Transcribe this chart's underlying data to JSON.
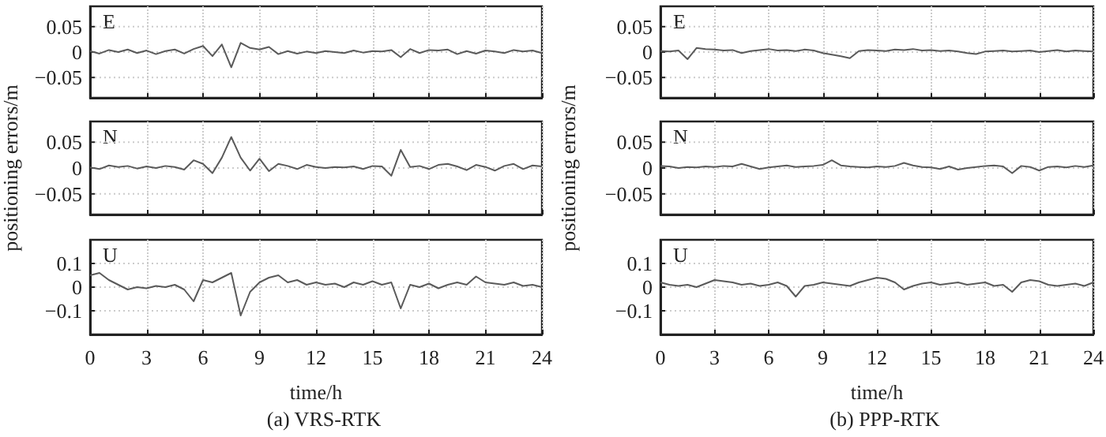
{
  "chart_data": [
    {
      "type": "line",
      "annotations": [
        "E"
      ],
      "x": [
        0,
        0.5,
        1,
        1.5,
        2,
        2.5,
        3,
        3.5,
        4,
        4.5,
        5,
        5.5,
        6,
        6.5,
        7,
        7.5,
        8,
        8.5,
        9,
        9.5,
        10,
        10.5,
        11,
        11.5,
        12,
        12.5,
        13,
        13.5,
        14,
        14.5,
        15,
        15.5,
        16,
        16.5,
        17,
        17.5,
        18,
        18.5,
        19,
        19.5,
        20,
        20.5,
        21,
        21.5,
        22,
        22.5,
        23,
        23.5,
        24
      ],
      "color": "#5a5a5a",
      "values": [
        0.002,
        -0.003,
        0.004,
        0,
        0.005,
        -0.002,
        0.003,
        -0.004,
        0.002,
        0.005,
        -0.003,
        0.006,
        0.012,
        -0.008,
        0.015,
        -0.03,
        0.018,
        0.008,
        0.005,
        0.01,
        -0.004,
        0.002,
        -0.003,
        0.001,
        -0.002,
        0.002,
        0,
        -0.002,
        0.003,
        -0.001,
        0.002,
        0.001,
        0.004,
        -0.01,
        0.006,
        -0.002,
        0.004,
        0.003,
        0.005,
        -0.004,
        0.002,
        -0.003,
        0.003,
        0.001,
        -0.002,
        0.004,
        0.001,
        0.003,
        -0.002
      ],
      "xlim": [
        0,
        24
      ],
      "xticks": [
        0,
        3,
        6,
        9,
        12,
        15,
        18,
        21,
        24
      ],
      "ylim": [
        -0.09,
        0.09
      ],
      "yticks": [
        -0.05,
        0,
        0.05
      ],
      "grid": true,
      "tick_labels": "y",
      "marker": "none"
    },
    {
      "type": "line",
      "annotations": [
        "N"
      ],
      "ylabel": "positioning errors/m",
      "x": [
        0,
        0.5,
        1,
        1.5,
        2,
        2.5,
        3,
        3.5,
        4,
        4.5,
        5,
        5.5,
        6,
        6.5,
        7,
        7.5,
        8,
        8.5,
        9,
        9.5,
        10,
        10.5,
        11,
        11.5,
        12,
        12.5,
        13,
        13.5,
        14,
        14.5,
        15,
        15.5,
        16,
        16.5,
        17,
        17.5,
        18,
        18.5,
        19,
        19.5,
        20,
        20.5,
        21,
        21.5,
        22,
        22.5,
        23,
        23.5,
        24
      ],
      "color": "#5a5a5a",
      "values": [
        0.001,
        -0.002,
        0.005,
        0.002,
        0.004,
        -0.001,
        0.003,
        0,
        0.004,
        0.002,
        -0.003,
        0.015,
        0.008,
        -0.01,
        0.02,
        0.06,
        0.02,
        -0.005,
        0.018,
        -0.006,
        0.008,
        0.004,
        -0.002,
        0.006,
        0.002,
        0,
        0.002,
        0.001,
        0.003,
        -0.002,
        0.004,
        0.003,
        -0.015,
        0.035,
        0.002,
        0.004,
        -0.002,
        0.006,
        0.008,
        0.003,
        -0.004,
        0.006,
        0.002,
        -0.005,
        0.004,
        0.008,
        -0.002,
        0.005,
        0.003
      ],
      "xlim": [
        0,
        24
      ],
      "xticks": [
        0,
        3,
        6,
        9,
        12,
        15,
        18,
        21,
        24
      ],
      "ylim": [
        -0.09,
        0.09
      ],
      "yticks": [
        -0.05,
        0,
        0.05
      ],
      "grid": true,
      "tick_labels": "y",
      "marker": "none"
    },
    {
      "type": "line",
      "annotations": [
        "U"
      ],
      "title": "(a) VRS-RTK",
      "xlabel": "time/h",
      "x": [
        0,
        0.5,
        1,
        1.5,
        2,
        2.5,
        3,
        3.5,
        4,
        4.5,
        5,
        5.5,
        6,
        6.5,
        7,
        7.5,
        8,
        8.5,
        9,
        9.5,
        10,
        10.5,
        11,
        11.5,
        12,
        12.5,
        13,
        13.5,
        14,
        14.5,
        15,
        15.5,
        16,
        16.5,
        17,
        17.5,
        18,
        18.5,
        19,
        19.5,
        20,
        20.5,
        21,
        21.5,
        22,
        22.5,
        23,
        23.5,
        24
      ],
      "color": "#5a5a5a",
      "values": [
        0.05,
        0.06,
        0.03,
        0.01,
        -0.01,
        0,
        -0.005,
        0.005,
        0,
        0.01,
        -0.01,
        -0.06,
        0.03,
        0.02,
        0.04,
        0.06,
        -0.12,
        -0.02,
        0.02,
        0.04,
        0.05,
        0.02,
        0.03,
        0.01,
        0.02,
        0.01,
        0.015,
        0,
        0.02,
        0.01,
        0.025,
        0.01,
        0.02,
        -0.09,
        0.01,
        0,
        0.015,
        -0.005,
        0.01,
        0.02,
        0.01,
        0.045,
        0.02,
        0.015,
        0.01,
        0.02,
        0.005,
        0.01,
        0
      ],
      "xlim": [
        0,
        24
      ],
      "xticks": [
        0,
        3,
        6,
        9,
        12,
        15,
        18,
        21,
        24
      ],
      "ylim": [
        -0.2,
        0.2
      ],
      "yticks": [
        -0.1,
        0,
        0.1
      ],
      "grid": true,
      "marker": "none"
    },
    {
      "type": "line",
      "annotations": [
        "E"
      ],
      "x": [
        0,
        0.5,
        1,
        1.5,
        2,
        2.5,
        3,
        3.5,
        4,
        4.5,
        5,
        5.5,
        6,
        6.5,
        7,
        7.5,
        8,
        8.5,
        9,
        9.5,
        10,
        10.5,
        11,
        11.5,
        12,
        12.5,
        13,
        13.5,
        14,
        14.5,
        15,
        15.5,
        16,
        16.5,
        17,
        17.5,
        18,
        18.5,
        19,
        19.5,
        20,
        20.5,
        21,
        21.5,
        22,
        22.5,
        23,
        23.5,
        24
      ],
      "color": "#5a5a5a",
      "values": [
        0.002,
        0.001,
        0.003,
        -0.014,
        0.008,
        0.006,
        0.005,
        0.003,
        0.004,
        -0.002,
        0.002,
        0.004,
        0.006,
        0.003,
        0.004,
        0.002,
        0.005,
        0.003,
        -0.002,
        -0.005,
        -0.008,
        -0.012,
        0.002,
        0.004,
        0.003,
        0.002,
        0.005,
        0.004,
        0.006,
        0.003,
        0.004,
        0.002,
        0.003,
        0.001,
        -0.002,
        -0.004,
        0.001,
        0.002,
        0.003,
        0.001,
        0.002,
        0.003,
        0,
        0.002,
        0.004,
        0.001,
        0.003,
        0.002,
        0.001
      ],
      "xlim": [
        0,
        24
      ],
      "xticks": [
        0,
        3,
        6,
        9,
        12,
        15,
        18,
        21,
        24
      ],
      "ylim": [
        -0.09,
        0.09
      ],
      "yticks": [
        -0.05,
        0,
        0.05
      ],
      "grid": true,
      "tick_labels": "y",
      "marker": "none"
    },
    {
      "type": "line",
      "annotations": [
        "N"
      ],
      "ylabel": "positioning errors/m",
      "x": [
        0,
        0.5,
        1,
        1.5,
        2,
        2.5,
        3,
        3.5,
        4,
        4.5,
        5,
        5.5,
        6,
        6.5,
        7,
        7.5,
        8,
        8.5,
        9,
        9.5,
        10,
        10.5,
        11,
        11.5,
        12,
        12.5,
        13,
        13.5,
        14,
        14.5,
        15,
        15.5,
        16,
        16.5,
        17,
        17.5,
        18,
        18.5,
        19,
        19.5,
        20,
        20.5,
        21,
        21.5,
        22,
        22.5,
        23,
        23.5,
        24
      ],
      "color": "#5a5a5a",
      "values": [
        0.004,
        0.003,
        0,
        0.002,
        0.001,
        0.003,
        0.002,
        0.004,
        0.003,
        0.008,
        0.003,
        -0.002,
        0.001,
        0.003,
        0.005,
        0.002,
        0.003,
        0.004,
        0.006,
        0.015,
        0.005,
        0.003,
        0.002,
        0.001,
        0.003,
        0.002,
        0.004,
        0.01,
        0.005,
        0.002,
        0.001,
        -0.002,
        0.003,
        -0.003,
        0,
        0.002,
        0.004,
        0.005,
        0.003,
        -0.01,
        0.004,
        0.002,
        -0.005,
        0.002,
        0.003,
        0.001,
        0.004,
        0.002,
        0.005
      ],
      "xlim": [
        0,
        24
      ],
      "xticks": [
        0,
        3,
        6,
        9,
        12,
        15,
        18,
        21,
        24
      ],
      "ylim": [
        -0.09,
        0.09
      ],
      "yticks": [
        -0.05,
        0,
        0.05
      ],
      "grid": true,
      "tick_labels": "y",
      "marker": "none"
    },
    {
      "type": "line",
      "annotations": [
        "U"
      ],
      "title": "(b) PPP-RTK",
      "xlabel": "time/h",
      "x": [
        0,
        0.5,
        1,
        1.5,
        2,
        2.5,
        3,
        3.5,
        4,
        4.5,
        5,
        5.5,
        6,
        6.5,
        7,
        7.5,
        8,
        8.5,
        9,
        9.5,
        10,
        10.5,
        11,
        11.5,
        12,
        12.5,
        13,
        13.5,
        14,
        14.5,
        15,
        15.5,
        16,
        16.5,
        17,
        17.5,
        18,
        18.5,
        19,
        19.5,
        20,
        20.5,
        21,
        21.5,
        22,
        22.5,
        23,
        23.5,
        24
      ],
      "color": "#5a5a5a",
      "values": [
        0.02,
        0.01,
        0.005,
        0.01,
        0,
        0.015,
        0.03,
        0.025,
        0.02,
        0.01,
        0.015,
        0.005,
        0.01,
        0.02,
        0.005,
        -0.04,
        0.005,
        0.01,
        0.02,
        0.015,
        0.01,
        0.005,
        0.02,
        0.03,
        0.04,
        0.035,
        0.02,
        -0.01,
        0.005,
        0.015,
        0.02,
        0.01,
        0.015,
        0.02,
        0.01,
        0.015,
        0.02,
        0.005,
        0.01,
        -0.02,
        0.02,
        0.03,
        0.025,
        0.01,
        0.005,
        0.01,
        0.015,
        0.005,
        0.02
      ],
      "xlim": [
        0,
        24
      ],
      "xticks": [
        0,
        3,
        6,
        9,
        12,
        15,
        18,
        21,
        24
      ],
      "ylim": [
        -0.2,
        0.2
      ],
      "yticks": [
        -0.1,
        0,
        0.1
      ],
      "grid": true,
      "marker": "none"
    }
  ]
}
